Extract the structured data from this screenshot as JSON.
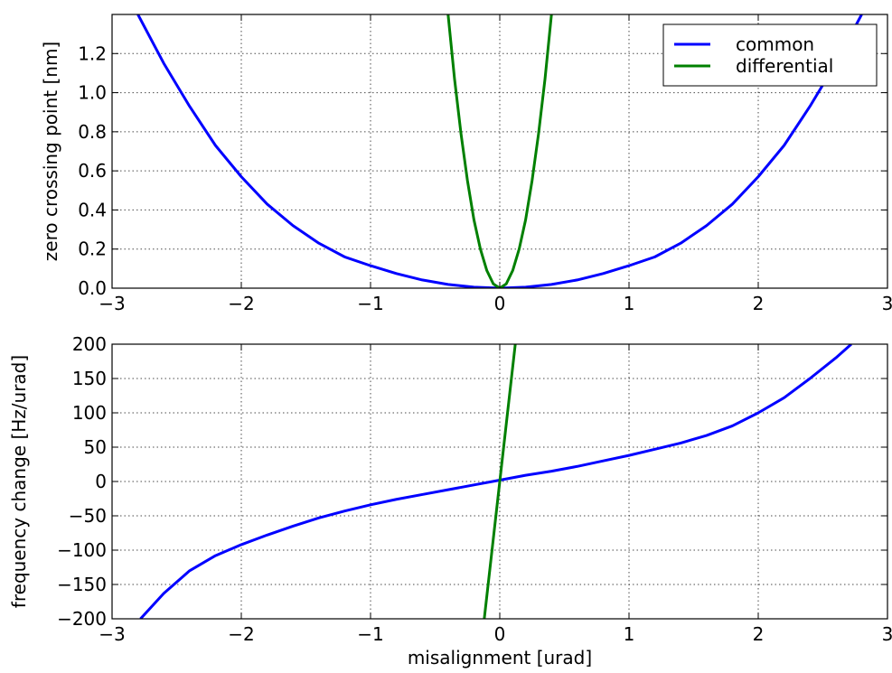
{
  "chart_data": [
    {
      "type": "line",
      "ylabel": "zero crossing point [nm]",
      "xlabel": "",
      "xlim": [
        -3,
        3
      ],
      "ylim": [
        0,
        1.4
      ],
      "xticks": [
        -3,
        -2,
        -1,
        0,
        1,
        2,
        3
      ],
      "xtick_labels": [
        "−3",
        "−2",
        "−1",
        "0",
        "1",
        "2",
        "3"
      ],
      "yticks": [
        0,
        0.2,
        0.4,
        0.6,
        0.8,
        1.0,
        1.2
      ],
      "ytick_labels": [
        "0.0",
        "0.2",
        "0.4",
        "0.6",
        "0.8",
        "1.0",
        "1.2"
      ],
      "grid": true,
      "legend": {
        "position": "top-right",
        "entries": [
          "common",
          "differential"
        ]
      },
      "series": [
        {
          "name": "common",
          "color": "#0000ff",
          "x": [
            -2.8,
            -2.6,
            -2.4,
            -2.2,
            -2.0,
            -1.8,
            -1.6,
            -1.4,
            -1.2,
            -1.0,
            -0.8,
            -0.6,
            -0.4,
            -0.2,
            0.0,
            0.2,
            0.4,
            0.6,
            0.8,
            1.0,
            1.2,
            1.4,
            1.6,
            1.8,
            2.0,
            2.2,
            2.4,
            2.6,
            2.8
          ],
          "y": [
            1.4,
            1.15,
            0.93,
            0.73,
            0.57,
            0.43,
            0.32,
            0.23,
            0.16,
            0.115,
            0.075,
            0.042,
            0.019,
            0.005,
            0.0,
            0.005,
            0.019,
            0.042,
            0.075,
            0.115,
            0.16,
            0.23,
            0.32,
            0.43,
            0.57,
            0.73,
            0.93,
            1.15,
            1.4
          ]
        },
        {
          "name": "differential",
          "color": "#008000",
          "x": [
            -0.4,
            -0.35,
            -0.3,
            -0.25,
            -0.2,
            -0.15,
            -0.1,
            -0.05,
            0.0,
            0.05,
            0.1,
            0.15,
            0.2,
            0.25,
            0.3,
            0.35,
            0.4
          ],
          "y": [
            1.4,
            1.07,
            0.79,
            0.55,
            0.35,
            0.2,
            0.09,
            0.022,
            0.0,
            0.022,
            0.09,
            0.2,
            0.35,
            0.55,
            0.79,
            1.07,
            1.4
          ]
        }
      ]
    },
    {
      "type": "line",
      "ylabel": "frequency change [Hz/urad]",
      "xlabel": "misalignment [urad]",
      "xlim": [
        -3,
        3
      ],
      "ylim": [
        -200,
        200
      ],
      "xticks": [
        -3,
        -2,
        -1,
        0,
        1,
        2,
        3
      ],
      "xtick_labels": [
        "−3",
        "−2",
        "−1",
        "0",
        "1",
        "2",
        "3"
      ],
      "yticks": [
        -200,
        -150,
        -100,
        -50,
        0,
        50,
        100,
        150,
        200
      ],
      "ytick_labels": [
        "−200",
        "−150",
        "−100",
        "−50",
        "0",
        "50",
        "100",
        "150",
        "200"
      ],
      "grid": true,
      "series": [
        {
          "name": "common",
          "color": "#0000ff",
          "x": [
            -2.78,
            -2.6,
            -2.4,
            -2.2,
            -2.0,
            -1.8,
            -1.6,
            -1.4,
            -1.2,
            -1.0,
            -0.8,
            -0.6,
            -0.4,
            -0.2,
            0.0,
            0.2,
            0.4,
            0.6,
            0.8,
            1.0,
            1.2,
            1.4,
            1.6,
            1.8,
            2.0,
            2.2,
            2.4,
            2.6,
            2.72
          ],
          "y": [
            -200,
            -163,
            -130,
            -108,
            -92,
            -78,
            -65,
            -53,
            -43,
            -34,
            -26,
            -19,
            -12,
            -5,
            2,
            9,
            15,
            22,
            30,
            38,
            47,
            56,
            67,
            81,
            100,
            122,
            150,
            180,
            200
          ]
        },
        {
          "name": "differential",
          "color": "#008000",
          "x": [
            -0.12,
            0.12
          ],
          "y": [
            -200,
            200
          ]
        }
      ]
    }
  ]
}
